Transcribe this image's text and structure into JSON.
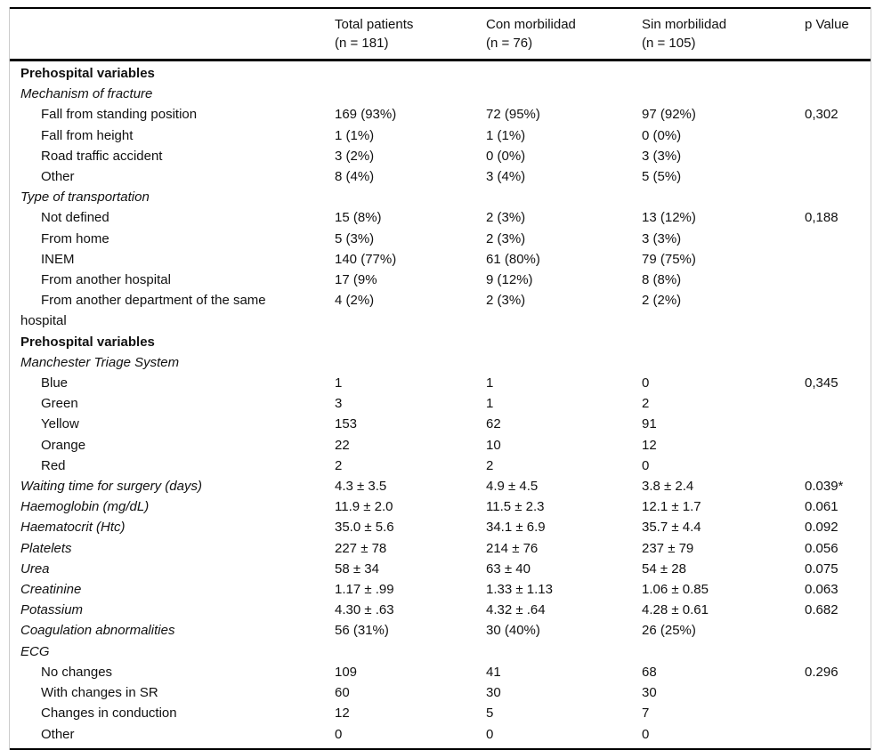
{
  "table": {
    "description": "Prehospital and admission variables compared between morbidity groups",
    "colors": {
      "rule": "#000000",
      "edge": "#cccccc",
      "text": "#111111",
      "background": "#ffffff"
    },
    "header": {
      "label": "",
      "total": {
        "line1": "Total patients",
        "line2": "(n = 181)"
      },
      "con": {
        "line1": "Con morbilidad",
        "line2": "(n = 76)"
      },
      "sin": {
        "line1": "Sin morbilidad",
        "line2": "(n = 105)"
      },
      "p": {
        "line1": "p Value",
        "line2": ""
      }
    },
    "rows": [
      {
        "label": "Prehospital variables",
        "style": "section",
        "values": [
          "",
          "",
          "",
          ""
        ]
      },
      {
        "label": "Mechanism of fracture",
        "style": "subsection",
        "values": [
          "",
          "",
          "",
          ""
        ]
      },
      {
        "label": "Fall from standing position",
        "style": "item",
        "values": [
          "169 (93%)",
          "72 (95%)",
          "97 (92%)",
          "0,302"
        ]
      },
      {
        "label": "Fall from height",
        "style": "item",
        "values": [
          "1 (1%)",
          "1 (1%)",
          "0 (0%)",
          ""
        ]
      },
      {
        "label": "Road traffic accident",
        "style": "item",
        "values": [
          "3 (2%)",
          "0 (0%)",
          "3 (3%)",
          ""
        ]
      },
      {
        "label": "Other",
        "style": "item",
        "values": [
          "8 (4%)",
          "3 (4%)",
          "5 (5%)",
          ""
        ]
      },
      {
        "label": "Type of transportation",
        "style": "subsection",
        "values": [
          "",
          "",
          "",
          ""
        ]
      },
      {
        "label": "Not defined",
        "style": "item",
        "values": [
          "15 (8%)",
          "2 (3%)",
          "13 (12%)",
          "0,188"
        ]
      },
      {
        "label": "From home",
        "style": "item",
        "values": [
          "5 (3%)",
          "2 (3%)",
          "3 (3%)",
          ""
        ]
      },
      {
        "label": "INEM",
        "style": "item",
        "values": [
          "140 (77%)",
          "61 (80%)",
          "79 (75%)",
          ""
        ]
      },
      {
        "label": "From another hospital",
        "style": "item",
        "values": [
          "17 (9%",
          "9 (12%)",
          "8 (8%)",
          ""
        ]
      },
      {
        "label": "From another department of the same\nhospital",
        "style": "itemwrap",
        "values": [
          "4 (2%)",
          "2 (3%)",
          "2 (2%)",
          ""
        ]
      },
      {
        "label": "Prehospital variables",
        "style": "section",
        "values": [
          "",
          "",
          "",
          ""
        ]
      },
      {
        "label": "Manchester Triage System",
        "style": "subsection",
        "values": [
          "",
          "",
          "",
          ""
        ]
      },
      {
        "label": "Blue",
        "style": "item",
        "values": [
          "1",
          "1",
          "0",
          "0,345"
        ]
      },
      {
        "label": "Green",
        "style": "item",
        "values": [
          "3",
          "1",
          "2",
          ""
        ]
      },
      {
        "label": "Yellow",
        "style": "item",
        "values": [
          "153",
          "62",
          "91",
          ""
        ]
      },
      {
        "label": "Orange",
        "style": "item",
        "values": [
          "22",
          "10",
          "12",
          ""
        ]
      },
      {
        "label": "Red",
        "style": "item",
        "values": [
          "2",
          "2",
          "0",
          ""
        ]
      },
      {
        "label": "Waiting time for surgery (days)",
        "style": "subsection",
        "values": [
          "4.3 ± 3.5",
          "4.9 ± 4.5",
          "3.8 ± 2.4",
          "0.039*"
        ]
      },
      {
        "label": "Haemoglobin (mg/dL)",
        "style": "subsection",
        "values": [
          "11.9 ± 2.0",
          "11.5 ± 2.3",
          "12.1 ± 1.7",
          "0.061"
        ]
      },
      {
        "label": "Haematocrit (Htc)",
        "style": "subsection",
        "values": [
          "35.0 ± 5.6",
          "34.1 ± 6.9",
          "35.7 ± 4.4",
          "0.092"
        ]
      },
      {
        "label": "Platelets",
        "style": "subsection",
        "values": [
          "227 ± 78",
          "214 ± 76",
          "237 ± 79",
          "0.056"
        ]
      },
      {
        "label": "Urea",
        "style": "subsection",
        "values": [
          "58 ± 34",
          "63 ± 40",
          "54 ± 28",
          "0.075"
        ]
      },
      {
        "label": "Creatinine",
        "style": "subsection",
        "values": [
          "1.17 ± .99",
          "1.33 ± 1.13",
          "1.06 ± 0.85",
          "0.063"
        ]
      },
      {
        "label": "Potassium",
        "style": "subsection",
        "values": [
          "4.30 ± .63",
          "4.32 ± .64",
          "4.28 ± 0.61",
          "0.682"
        ]
      },
      {
        "label": "Coagulation abnormalities",
        "style": "subsection",
        "values": [
          "56 (31%)",
          "30 (40%)",
          "26 (25%)",
          ""
        ]
      },
      {
        "label": "ECG",
        "style": "subsection",
        "values": [
          "",
          "",
          "",
          ""
        ]
      },
      {
        "label": "No changes",
        "style": "item",
        "values": [
          "109",
          "41",
          "68",
          "0.296"
        ]
      },
      {
        "label": "With changes in SR",
        "style": "item",
        "values": [
          "60",
          "30",
          "30",
          ""
        ]
      },
      {
        "label": "Changes in conduction",
        "style": "item",
        "values": [
          "12",
          "5",
          "7",
          ""
        ]
      },
      {
        "label": "Other",
        "style": "item",
        "values": [
          "0",
          "0",
          "0",
          ""
        ]
      }
    ]
  }
}
